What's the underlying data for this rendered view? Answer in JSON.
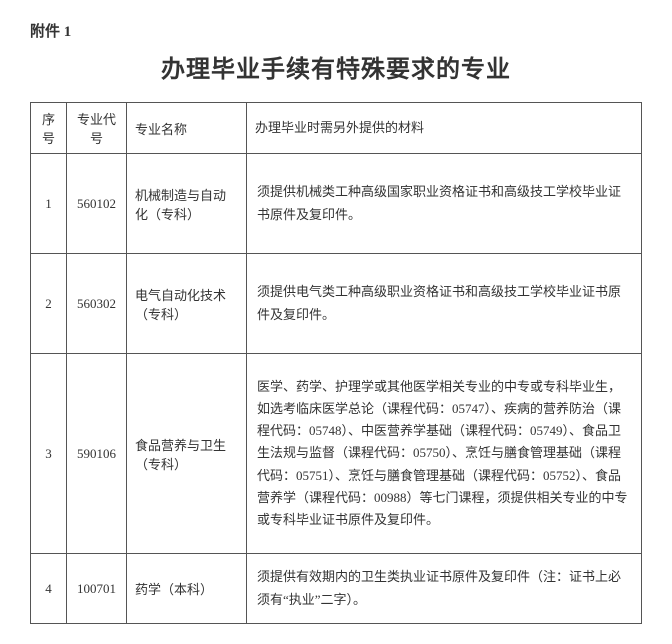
{
  "attachment_label": "附件 1",
  "title": "办理毕业手续有特殊要求的专业",
  "headers": {
    "num": "序号",
    "code": "专业代号",
    "name": "专业名称",
    "req": "办理毕业时需另外提供的材料"
  },
  "rows": [
    {
      "num": "1",
      "code": "560102",
      "name": "机械制造与自动化（专科）",
      "req": "须提供机械类工种高级国家职业资格证书和高级技工学校毕业证书原件及复印件。"
    },
    {
      "num": "2",
      "code": "560302",
      "name": "电气自动化技术（专科）",
      "req": "须提供电气类工种高级职业资格证书和高级技工学校毕业证书原件及复印件。"
    },
    {
      "num": "3",
      "code": "590106",
      "name": "食品营养与卫生（专科）",
      "req": "医学、药学、护理学或其他医学相关专业的中专或专科毕业生，如选考临床医学总论（课程代码：05747）、疾病的营养防治（课程代码：05748）、中医营养学基础（课程代码：05749）、食品卫生法规与监督（课程代码：05750）、烹饪与膳食管理基础（课程代码：05751）、烹饪与膳食管理基础（课程代码：05752）、食品营养学（课程代码：00988）等七门课程，须提供相关专业的中专或专科毕业证书原件及复印件。"
    },
    {
      "num": "4",
      "code": "100701",
      "name": "药学（本科）",
      "req": "须提供有效期内的卫生类执业证书原件及复印件（注：证书上必须有“执业”二字）。"
    }
  ]
}
